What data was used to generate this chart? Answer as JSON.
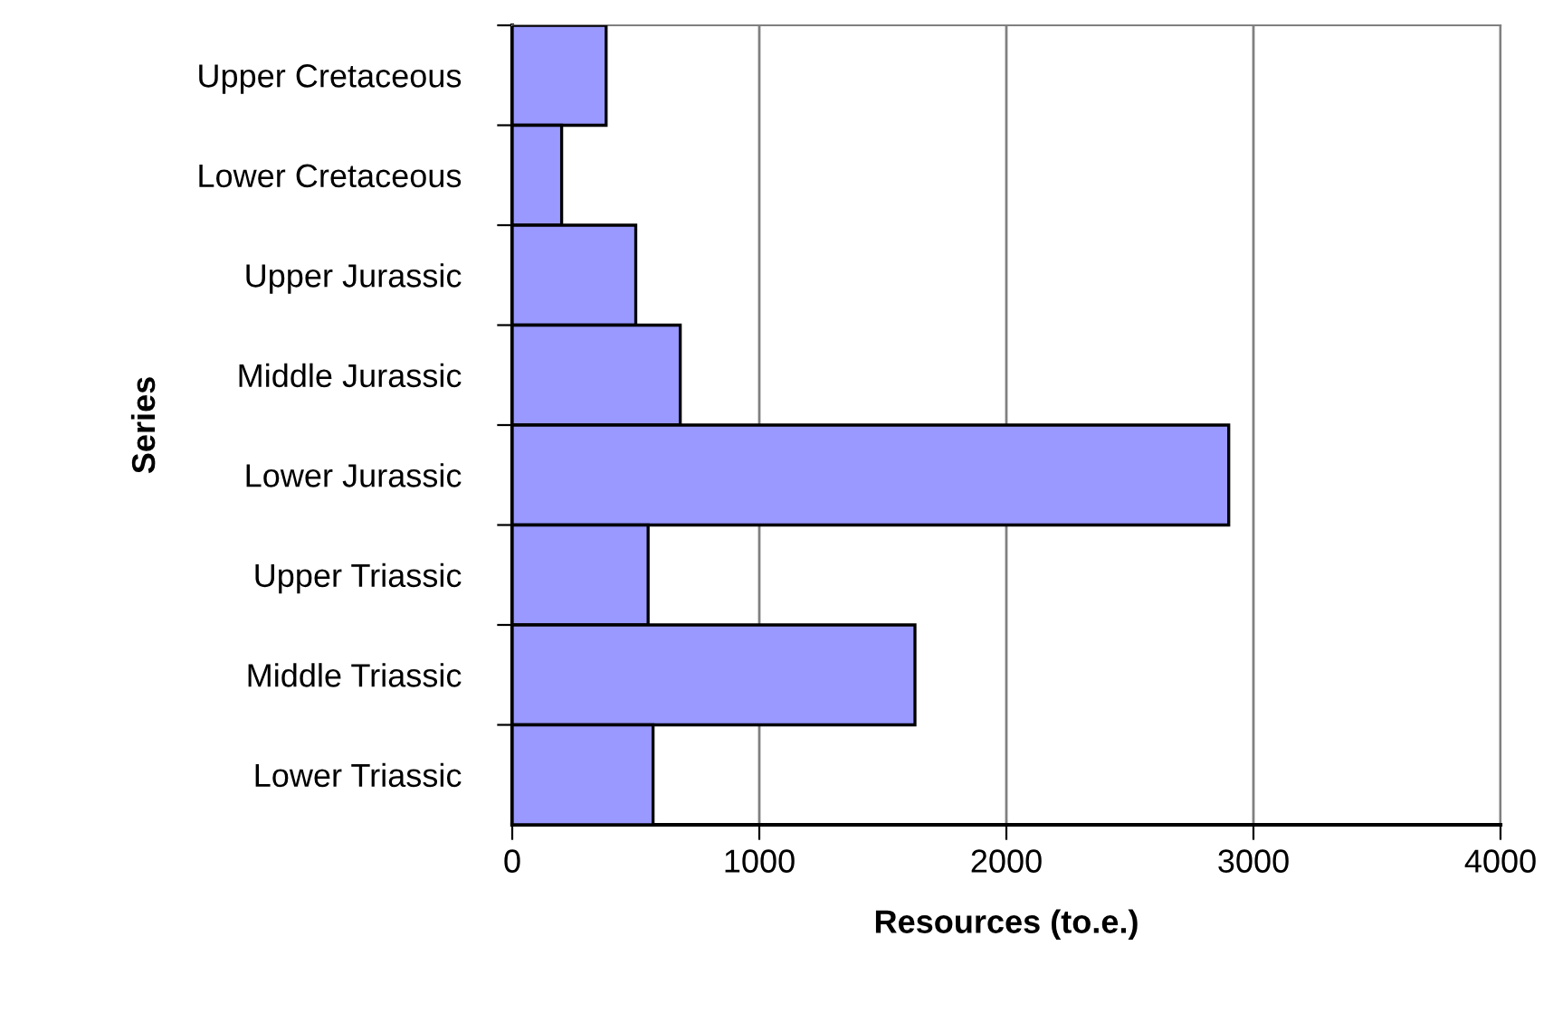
{
  "chart_data": {
    "type": "bar",
    "orientation": "horizontal",
    "xlabel": "Resources (to.e.)",
    "ylabel": "Series",
    "categories": [
      "Upper Cretaceous",
      "Lower Cretaceous",
      "Upper Jurassic",
      "Middle Jurassic",
      "Lower Jurassic",
      "Upper Triassic",
      "Middle Triassic",
      "Lower Triassic"
    ],
    "values": [
      380,
      200,
      500,
      680,
      2900,
      550,
      1630,
      570
    ],
    "color": "#9999ff",
    "xlim": [
      0,
      4000
    ],
    "xticks": [
      0,
      1000,
      2000,
      3000,
      4000
    ],
    "grid": "x"
  }
}
